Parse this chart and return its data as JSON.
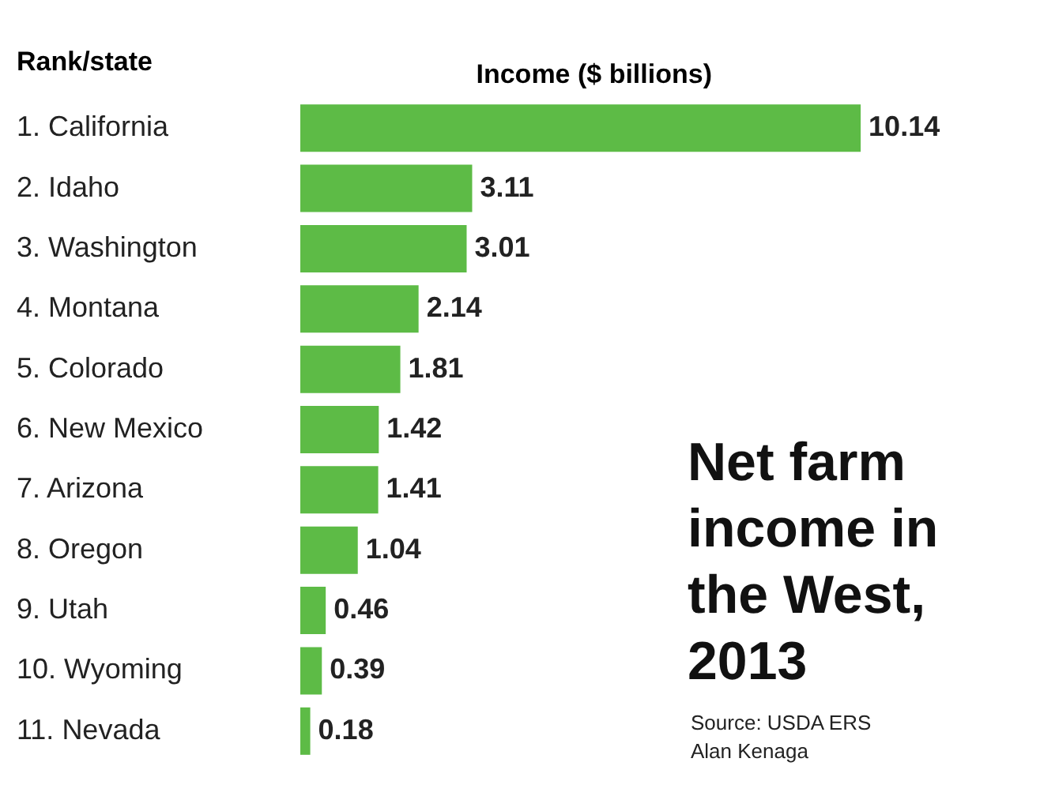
{
  "chart_data": {
    "type": "bar",
    "orientation": "horizontal",
    "title": "Net farm income in the West, 2013",
    "xlabel": "Income ($ billions)",
    "ylabel": "Rank/state",
    "categories": [
      "1.  California",
      "2.  Idaho",
      "3.  Washington",
      "4.  Montana",
      "5.  Colorado",
      "6.  New Mexico",
      "7.  Arizona",
      "8.  Oregon",
      "9.  Utah",
      "10. Wyoming",
      "11. Nevada"
    ],
    "values": [
      10.14,
      3.11,
      3.01,
      2.14,
      1.81,
      1.42,
      1.41,
      1.04,
      0.46,
      0.39,
      0.18
    ],
    "color": "#5dbb46",
    "data_labels": true,
    "grid": false,
    "annotations": [
      "Source: USDA ERS",
      "Alan Kenaga"
    ]
  }
}
